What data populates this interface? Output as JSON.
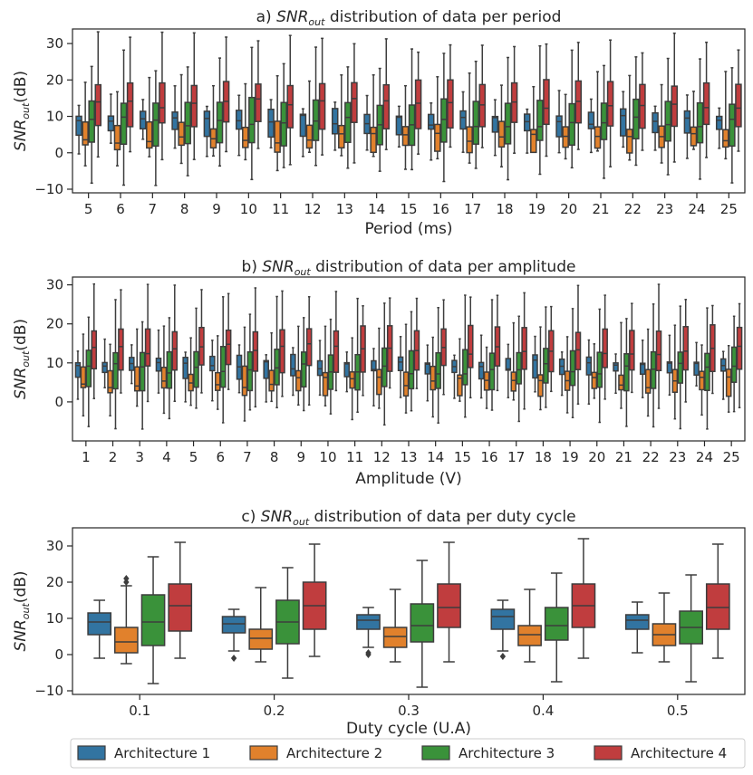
{
  "colors": {
    "Architecture 1": "#3274a1",
    "Architecture 2": "#e1812c",
    "Architecture 3": "#3a923a",
    "Architecture 4": "#c03d3e",
    "axis": "#262626",
    "whisker": "#3d3d3d"
  },
  "legend": [
    "Architecture 1",
    "Architecture 2",
    "Architecture 3",
    "Architecture 4"
  ],
  "chart_data": [
    {
      "type": "box",
      "title_prefix": "a)",
      "title_snr": "SNR",
      "title_sub": "out",
      "title_rest": "distribution of data per period",
      "xlabel": "Period (ms)",
      "ylabel_main": "SNR",
      "ylabel_sub": "out",
      "ylabel_unit": "(dB)",
      "ylim": [
        -11,
        34
      ],
      "yticks": [
        -10,
        0,
        10,
        20,
        30
      ],
      "categories": [
        "5",
        "6",
        "7",
        "8",
        "9",
        "10",
        "11",
        "12",
        "13",
        "14",
        "15",
        "16",
        "17",
        "18",
        "19",
        "20",
        "21",
        "22",
        "23",
        "24",
        "25"
      ],
      "series": [
        {
          "name": "Architecture 1",
          "stats": {
            "min": 1,
            "q1": 5.5,
            "median": 9,
            "q3": 11,
            "max": 15
          }
        },
        {
          "name": "Architecture 2",
          "stats": {
            "min": -2,
            "q1": 1,
            "median": 4,
            "q3": 7.5,
            "max": 19
          }
        },
        {
          "name": "Architecture 3",
          "stats": {
            "min": -6,
            "q1": 3,
            "median": 8.5,
            "q3": 14,
            "max": 26
          }
        },
        {
          "name": "Architecture 4",
          "stats": {
            "min": -1,
            "q1": 7.5,
            "median": 13.5,
            "q3": 19.5,
            "max": 30
          }
        }
      ]
    },
    {
      "type": "box",
      "title_prefix": "b)",
      "title_snr": "SNR",
      "title_sub": "out",
      "title_rest": "distribution of data per amplitude",
      "xlabel": "Amplitude (V)",
      "ylabel_main": "SNR",
      "ylabel_sub": "out",
      "ylabel_unit": "(dB)",
      "ylim": [
        -10,
        32
      ],
      "yticks": [
        0,
        10,
        20,
        30
      ],
      "categories": [
        "1",
        "2",
        "3",
        "4",
        "5",
        "6",
        "7",
        "8",
        "9",
        "10",
        "11",
        "12",
        "13",
        "14",
        "15",
        "16",
        "17",
        "18",
        "19",
        "20",
        "21",
        "22",
        "23",
        "24",
        "25"
      ],
      "series": [
        {
          "name": "Architecture 1",
          "stats": {
            "min": 2,
            "q1": 7,
            "median": 9.5,
            "q3": 11,
            "max": 15
          }
        },
        {
          "name": "Architecture 2",
          "stats": {
            "min": -2,
            "q1": 2.5,
            "median": 5,
            "q3": 8,
            "max": 17
          }
        },
        {
          "name": "Architecture 3",
          "stats": {
            "min": -4,
            "q1": 4,
            "median": 8.5,
            "q3": 13,
            "max": 24
          }
        },
        {
          "name": "Architecture 4",
          "stats": {
            "min": 1,
            "q1": 8.5,
            "median": 13.5,
            "q3": 19,
            "max": 27
          }
        }
      ]
    },
    {
      "type": "box",
      "title_prefix": "c)",
      "title_snr": "SNR",
      "title_sub": "out",
      "title_rest": "distribution of data per duty cycle",
      "xlabel": "Duty cycle (U.A)",
      "ylabel_main": "SNR",
      "ylabel_sub": "out",
      "ylabel_unit": "(dB)",
      "ylim": [
        -11,
        35
      ],
      "yticks": [
        -10,
        0,
        10,
        20,
        30
      ],
      "categories": [
        "0.1",
        "0.2",
        "0.3",
        "0.4",
        "0.5"
      ],
      "boxes": [
        [
          {
            "min": -1,
            "q1": 5.5,
            "median": 9,
            "q3": 11.5,
            "max": 15,
            "fliers": []
          },
          {
            "min": -2.5,
            "q1": 0.5,
            "median": 3.5,
            "q3": 7.5,
            "max": 19,
            "fliers": [
              20,
              21
            ]
          },
          {
            "min": -8,
            "q1": 2.5,
            "median": 9,
            "q3": 16.5,
            "max": 27,
            "fliers": []
          },
          {
            "min": -1,
            "q1": 6.5,
            "median": 13.5,
            "q3": 19.5,
            "max": 31,
            "fliers": []
          }
        ],
        [
          {
            "min": 1,
            "q1": 6,
            "median": 8.5,
            "q3": 10.5,
            "max": 12.5,
            "fliers": [
              -1
            ]
          },
          {
            "min": -2,
            "q1": 1.5,
            "median": 4.5,
            "q3": 7,
            "max": 18.5,
            "fliers": []
          },
          {
            "min": -6.5,
            "q1": 3,
            "median": 9,
            "q3": 15,
            "max": 24,
            "fliers": []
          },
          {
            "min": -0.5,
            "q1": 7,
            "median": 13.5,
            "q3": 20,
            "max": 30.5,
            "fliers": []
          }
        ],
        [
          {
            "min": 2,
            "q1": 7,
            "median": 9.5,
            "q3": 11,
            "max": 13,
            "fliers": [
              0.5,
              0
            ]
          },
          {
            "min": -2,
            "q1": 2,
            "median": 5,
            "q3": 7.5,
            "max": 18,
            "fliers": []
          },
          {
            "min": -9,
            "q1": 3.5,
            "median": 8,
            "q3": 14,
            "max": 26,
            "fliers": []
          },
          {
            "min": -2,
            "q1": 7.5,
            "median": 13,
            "q3": 19.5,
            "max": 31,
            "fliers": []
          }
        ],
        [
          {
            "min": 1,
            "q1": 7,
            "median": 10.5,
            "q3": 12.5,
            "max": 15,
            "fliers": [
              -0.5
            ]
          },
          {
            "min": -2,
            "q1": 2.5,
            "median": 5.5,
            "q3": 8,
            "max": 18,
            "fliers": []
          },
          {
            "min": -7.5,
            "q1": 4,
            "median": 8,
            "q3": 13,
            "max": 22.5,
            "fliers": []
          },
          {
            "min": -1,
            "q1": 7.5,
            "median": 13.5,
            "q3": 19.5,
            "max": 32,
            "fliers": []
          }
        ],
        [
          {
            "min": 0.5,
            "q1": 7,
            "median": 9.5,
            "q3": 11,
            "max": 14.5,
            "fliers": []
          },
          {
            "min": -2,
            "q1": 2.5,
            "median": 5.5,
            "q3": 8.5,
            "max": 17,
            "fliers": []
          },
          {
            "min": -7.5,
            "q1": 3,
            "median": 7.5,
            "q3": 12,
            "max": 22,
            "fliers": []
          },
          {
            "min": -1,
            "q1": 7,
            "median": 13,
            "q3": 19.5,
            "max": 30.5,
            "fliers": []
          }
        ]
      ]
    }
  ]
}
